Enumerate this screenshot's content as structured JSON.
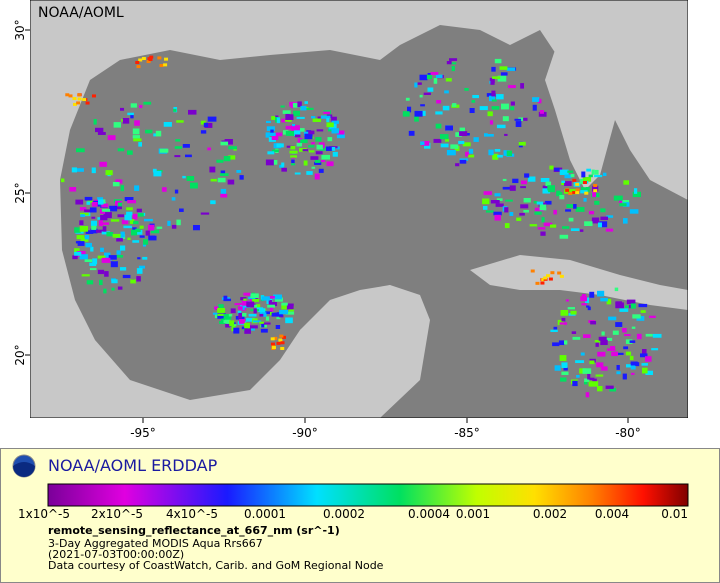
{
  "map": {
    "corner_label": "NOAA/AOML",
    "lat_labels": [
      "30°",
      "25°",
      "20°"
    ],
    "lon_labels": [
      "-95°",
      "-90°",
      "-85°",
      "-80°"
    ]
  },
  "legend": {
    "title": "NOAA/AOML ERDDAP",
    "colorbar_labels": [
      "1x10^-5",
      "2x10^-5",
      "4x10^-5",
      "0.0001",
      "0.0002",
      "0.0004",
      "0.001",
      "0.002",
      "0.004",
      "0.01"
    ],
    "variable": "remote_sensing_reflectance_at_667_nm (sr^-1)",
    "lines": [
      "3-Day Aggregated MODIS Aqua Rrs667",
      "(2021-07-03T00:00:00Z)",
      "Data courtesy of CoastWatch, Carib. and GoM Regional Node"
    ]
  }
}
